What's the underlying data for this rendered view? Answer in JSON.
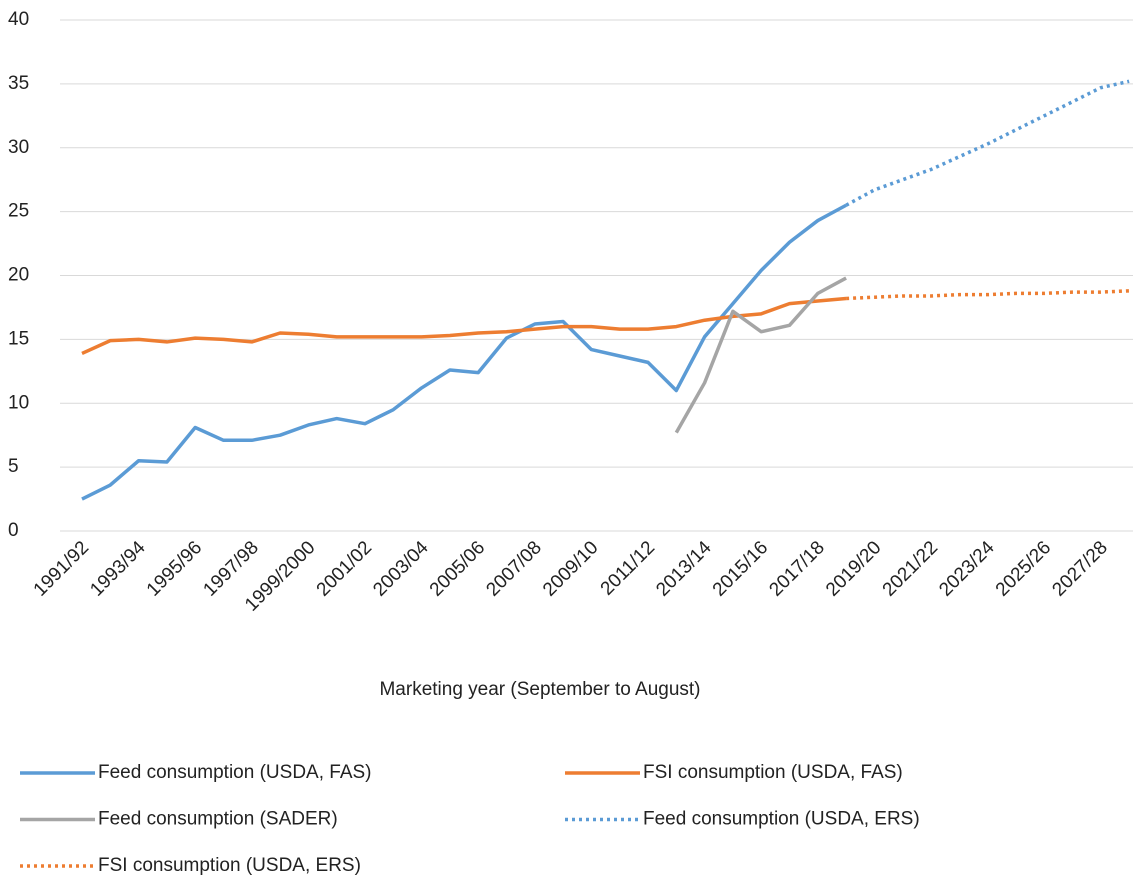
{
  "chart_data": {
    "type": "line",
    "x_label": "Marketing year (September to August)",
    "categories": [
      "1991/92",
      null,
      "1993/94",
      null,
      "1995/96",
      null,
      "1997/98",
      null,
      "1999/2000",
      null,
      "2001/02",
      null,
      "2003/04",
      null,
      "2005/06",
      null,
      "2007/08",
      null,
      "2009/10",
      null,
      "2011/12",
      null,
      "2013/14",
      null,
      "2015/16",
      null,
      "2017/18",
      null,
      "2019/20",
      null,
      "2021/22",
      null,
      "2023/24",
      null,
      "2025/26",
      null,
      "2027/28",
      null
    ],
    "series": [
      {
        "name": "Feed consumption (USDA, FAS)",
        "color": "#5b9bd5",
        "style": "solid",
        "values": [
          2.5,
          3.6,
          5.5,
          5.4,
          8.1,
          7.1,
          7.1,
          7.5,
          8.3,
          8.8,
          8.4,
          9.5,
          11.2,
          12.6,
          12.4,
          15.1,
          16.2,
          16.4,
          14.2,
          13.7,
          13.2,
          11.0,
          15.2,
          17.8,
          20.4,
          22.6,
          24.3,
          25.5,
          null,
          null,
          null,
          null,
          null,
          null,
          null,
          null,
          null,
          null
        ]
      },
      {
        "name": "FSI consumption (USDA, FAS)",
        "color": "#ed7d31",
        "style": "solid",
        "values": [
          13.9,
          14.9,
          15.0,
          14.8,
          15.1,
          15.0,
          14.8,
          15.5,
          15.4,
          15.2,
          15.2,
          15.2,
          15.2,
          15.3,
          15.5,
          15.6,
          15.8,
          16.0,
          16.0,
          15.8,
          15.8,
          16.0,
          16.5,
          16.8,
          17.0,
          17.8,
          18.0,
          18.2,
          null,
          null,
          null,
          null,
          null,
          null,
          null,
          null,
          null,
          null
        ]
      },
      {
        "name": "Feed consumption (SADER)",
        "color": "#a5a5a5",
        "style": "solid",
        "values": [
          null,
          null,
          null,
          null,
          null,
          null,
          null,
          null,
          null,
          null,
          null,
          null,
          null,
          null,
          null,
          null,
          null,
          null,
          null,
          null,
          null,
          7.7,
          11.6,
          17.2,
          15.6,
          16.1,
          18.6,
          19.8,
          null,
          null,
          null,
          null,
          null,
          null,
          null,
          null,
          null,
          null
        ]
      },
      {
        "name": "Feed consumption (USDA, ERS)",
        "color": "#5b9bd5",
        "style": "dotted",
        "values": [
          null,
          null,
          null,
          null,
          null,
          null,
          null,
          null,
          null,
          null,
          null,
          null,
          null,
          null,
          null,
          null,
          null,
          null,
          null,
          null,
          null,
          null,
          null,
          null,
          null,
          null,
          null,
          25.5,
          26.7,
          27.5,
          28.3,
          29.3,
          30.3,
          31.4,
          32.5,
          33.6,
          34.7,
          35.2
        ]
      },
      {
        "name": "FSI consumption (USDA, ERS)",
        "color": "#ed7d31",
        "style": "dotted",
        "values": [
          null,
          null,
          null,
          null,
          null,
          null,
          null,
          null,
          null,
          null,
          null,
          null,
          null,
          null,
          null,
          null,
          null,
          null,
          null,
          null,
          null,
          null,
          null,
          null,
          null,
          null,
          null,
          18.2,
          18.3,
          18.4,
          18.4,
          18.5,
          18.5,
          18.6,
          18.6,
          18.7,
          18.7,
          18.8
        ]
      }
    ],
    "ylim": [
      0,
      40
    ],
    "yticks": [
      0,
      5,
      10,
      15,
      20,
      25,
      30,
      35,
      40
    ],
    "grid": true,
    "legend": "bottom"
  }
}
